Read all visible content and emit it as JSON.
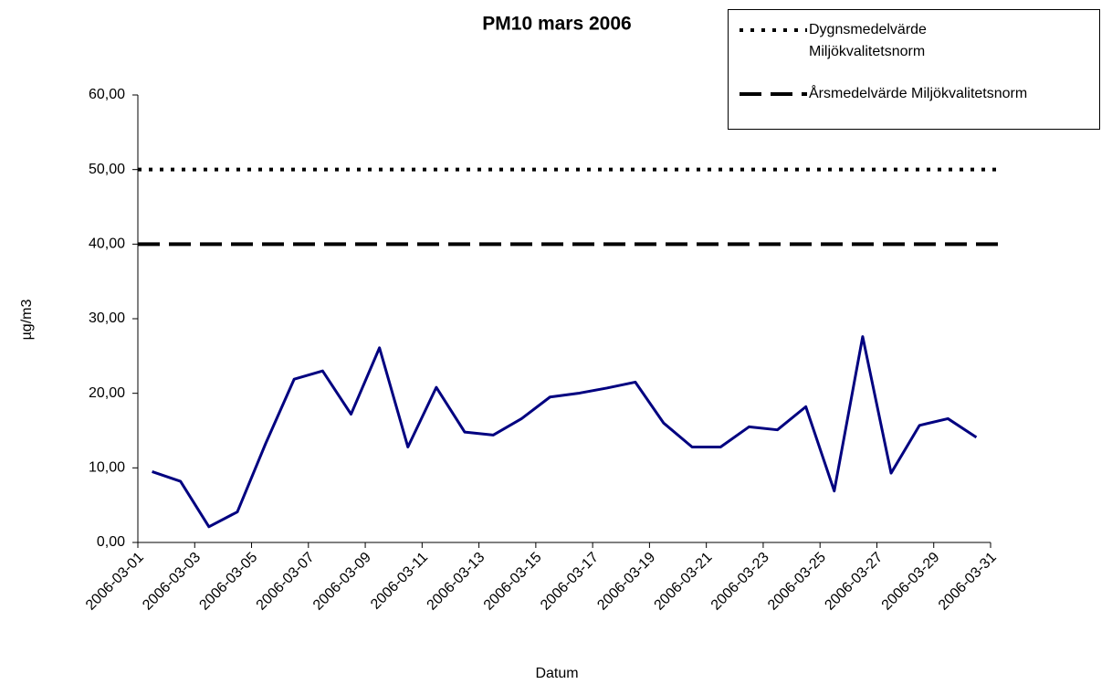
{
  "chart_data": {
    "type": "line",
    "title": "PM10 mars 2006",
    "x_label": "Datum",
    "y_label": "µg/m3",
    "x": [
      "2006-03-01",
      "2006-03-02",
      "2006-03-03",
      "2006-03-04",
      "2006-03-05",
      "2006-03-06",
      "2006-03-07",
      "2006-03-08",
      "2006-03-09",
      "2006-03-10",
      "2006-03-11",
      "2006-03-12",
      "2006-03-13",
      "2006-03-14",
      "2006-03-15",
      "2006-03-16",
      "2006-03-17",
      "2006-03-18",
      "2006-03-19",
      "2006-03-20",
      "2006-03-21",
      "2006-03-22",
      "2006-03-23",
      "2006-03-24",
      "2006-03-25",
      "2006-03-26",
      "2006-03-27",
      "2006-03-28",
      "2006-03-29",
      "2006-03-30"
    ],
    "series": [
      {
        "color": "#000080",
        "values": [
          9.5,
          8.2,
          2.1,
          4.1,
          13.3,
          21.9,
          23.0,
          17.2,
          26.1,
          12.8,
          20.8,
          14.8,
          14.4,
          16.6,
          19.5,
          20.0,
          20.7,
          21.5,
          16.0,
          12.8,
          12.8,
          15.5,
          15.1,
          18.2,
          6.9,
          27.6,
          9.3,
          15.7,
          16.6,
          14.1
        ]
      }
    ],
    "reference_lines": [
      {
        "name": "Dygnsmedelvärde Miljökvalitetsnorm",
        "value": 50,
        "style": "dotted",
        "color": "#000000"
      },
      {
        "name": "Årsmedelvärde Miljökvalitetsnorm",
        "value": 40,
        "style": "dashed",
        "color": "#000000"
      }
    ],
    "xticks": [
      "2006-03-01",
      "2006-03-03",
      "2006-03-05",
      "2006-03-07",
      "2006-03-09",
      "2006-03-11",
      "2006-03-13",
      "2006-03-15",
      "2006-03-17",
      "2006-03-19",
      "2006-03-21",
      "2006-03-23",
      "2006-03-25",
      "2006-03-27",
      "2006-03-29",
      "2006-03-31"
    ],
    "ylim": [
      0,
      60
    ],
    "yticks": [
      {
        "value": 0,
        "label": "0,00"
      },
      {
        "value": 10,
        "label": "10,00"
      },
      {
        "value": 20,
        "label": "20,00"
      },
      {
        "value": 30,
        "label": "30,00"
      },
      {
        "value": 40,
        "label": "40,00"
      },
      {
        "value": 50,
        "label": "50,00"
      },
      {
        "value": 60,
        "label": "60,00"
      }
    ],
    "grid": false,
    "legend": "top-right"
  }
}
